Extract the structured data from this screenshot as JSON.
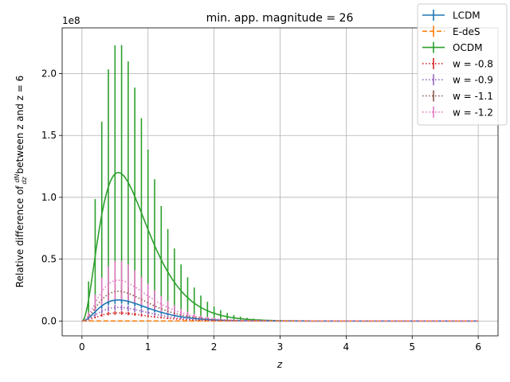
{
  "chart_data": {
    "type": "line",
    "title": "min. app. magnitude = 26",
    "xlabel": "z",
    "ylabel_prefix": "Relative difference of ",
    "ylabel_frac_num": "dN",
    "ylabel_frac_den": "dz",
    "ylabel_suffix": " between z and z = 6",
    "y_offset_label": "1e8",
    "xlim": [
      -0.3,
      6.3
    ],
    "ylim": [
      -12000000,
      237000000
    ],
    "xticks": [
      0,
      1,
      2,
      3,
      4,
      5,
      6
    ],
    "xtick_labels": [
      "0",
      "1",
      "2",
      "3",
      "4",
      "5",
      "6"
    ],
    "yticks": [
      0,
      50000000,
      100000000,
      150000000,
      200000000
    ],
    "ytick_labels": [
      "0.0",
      "0.5",
      "1.0",
      "1.5",
      "2.0"
    ],
    "grid": true,
    "legend_position": "top-right",
    "series": [
      {
        "name": "LCDM",
        "color": "#1f77b4",
        "style": "solid",
        "peak": 17000000,
        "err_peak": 3000000
      },
      {
        "name": "E-deS",
        "color": "#ff7f0e",
        "style": "dashed",
        "peak": 0,
        "err_peak": 0
      },
      {
        "name": "OCDM",
        "color": "#2ca02c",
        "style": "solid",
        "peak": 120000000,
        "err_peak": 105000000
      },
      {
        "name": "w = -0.8",
        "color": "#d62728",
        "style": "dotted",
        "peak": 6500000,
        "err_peak": 1500000
      },
      {
        "name": "w = -0.9",
        "color": "#9467bd",
        "style": "dotted",
        "peak": 11000000,
        "err_peak": 2500000
      },
      {
        "name": "w = -1.1",
        "color": "#8c564b",
        "style": "dotted",
        "peak": 24000000,
        "err_peak": 5000000
      },
      {
        "name": "w = -1.2",
        "color": "#e377c2",
        "style": "dotted",
        "peak": 33000000,
        "err_peak": 16000000
      }
    ]
  }
}
